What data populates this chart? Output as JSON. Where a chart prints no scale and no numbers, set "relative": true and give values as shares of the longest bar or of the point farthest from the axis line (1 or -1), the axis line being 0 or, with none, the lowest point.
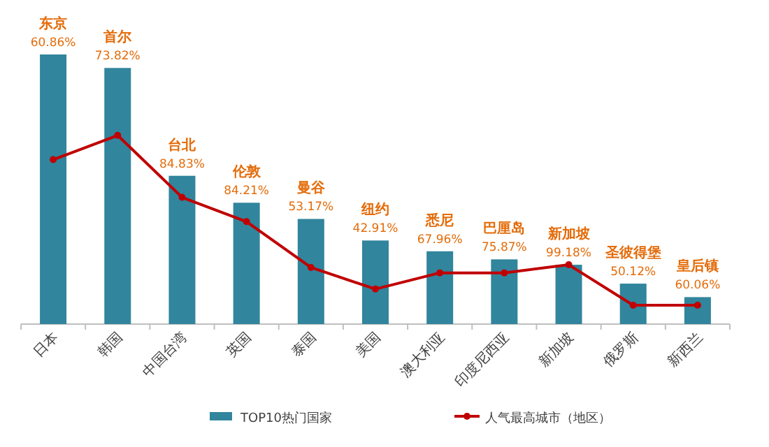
{
  "chart_data": {
    "type": "bar",
    "relative": true,
    "legend": "bottom",
    "marker": "circle",
    "categories": [
      "日本",
      "韩国",
      "中国台湾",
      "英国",
      "泰国",
      "美国",
      "澳大利亚",
      "印度尼西亚",
      "新加坡",
      "俄罗斯",
      "新西兰"
    ],
    "series": [
      {
        "name": "TOP10热门国家",
        "color": "#31859c",
        "values": [
          1,
          0.95,
          0.55,
          0.45,
          0.39,
          0.31,
          0.27,
          0.24,
          0.22,
          0.15,
          0.1
        ]
      },
      {
        "name": "人气最高城市（地区）",
        "type": "line",
        "color": "#c00000",
        "values": [
          0.61,
          0.7,
          0.47,
          0.38,
          0.21,
          0.13,
          0.19,
          0.19,
          0.22,
          0.07,
          0.07
        ]
      }
    ],
    "annotations": [
      {
        "text": "东京",
        "x": "日本",
        "y": 1
      },
      {
        "text": "60.86%",
        "x": "日本",
        "y": 1
      },
      {
        "text": "首尔",
        "x": "韩国",
        "y": 0.95
      },
      {
        "text": "73.82%",
        "x": "韩国",
        "y": 0.95
      },
      {
        "text": "台北",
        "x": "中国台湾",
        "y": 0.55
      },
      {
        "text": "84.83%",
        "x": "中国台湾",
        "y": 0.55
      },
      {
        "text": "伦敦",
        "x": "英国",
        "y": 0.45
      },
      {
        "text": "84.21%",
        "x": "英国",
        "y": 0.45
      },
      {
        "text": "曼谷",
        "x": "泰国",
        "y": 0.39
      },
      {
        "text": "53.17%",
        "x": "泰国",
        "y": 0.39
      },
      {
        "text": "纽约",
        "x": "美国",
        "y": 0.31
      },
      {
        "text": "42.91%",
        "x": "美国",
        "y": 0.31
      },
      {
        "text": "悉尼",
        "x": "澳大利亚",
        "y": 0.27
      },
      {
        "text": "67.96%",
        "x": "澳大利亚",
        "y": 0.27
      },
      {
        "text": "巴厘岛",
        "x": "印度尼西亚",
        "y": 0.24
      },
      {
        "text": "75.87%",
        "x": "印度尼西亚",
        "y": 0.24
      },
      {
        "text": "新加坡",
        "x": "新加坡",
        "y": 0.22
      },
      {
        "text": "99.18%",
        "x": "新加坡",
        "y": 0.22
      },
      {
        "text": "圣彼得堡",
        "x": "俄罗斯",
        "y": 0.15
      },
      {
        "text": "50.12%",
        "x": "俄罗斯",
        "y": 0.15
      },
      {
        "text": "皇后镇",
        "x": "新西兰",
        "y": 0.1
      },
      {
        "text": "60.06%",
        "x": "新西兰",
        "y": 0.1
      }
    ]
  }
}
